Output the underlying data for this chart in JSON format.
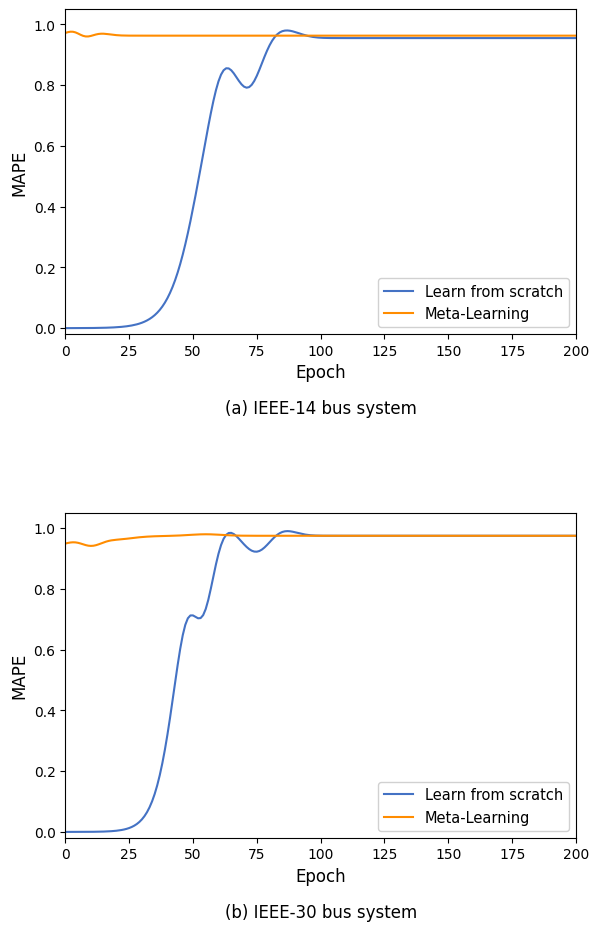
{
  "fig_width": 6.08,
  "fig_height": 9.26,
  "blue_color": "#4472C4",
  "orange_color": "#FF8C00",
  "xlabel": "Epoch",
  "ylabel": "MAPE",
  "legend_labels": [
    "Learn from scratch",
    "Meta-Learning"
  ],
  "caption_a": "(a) IEEE-14 bus system",
  "caption_b": "(b) IEEE-30 bus system",
  "xlim": [
    0,
    200
  ],
  "ylim": [
    -0.02,
    1.05
  ],
  "xticks": [
    0,
    25,
    50,
    75,
    100,
    125,
    150,
    175,
    200
  ],
  "yticks": [
    0.0,
    0.2,
    0.4,
    0.6,
    0.8,
    1.0
  ]
}
